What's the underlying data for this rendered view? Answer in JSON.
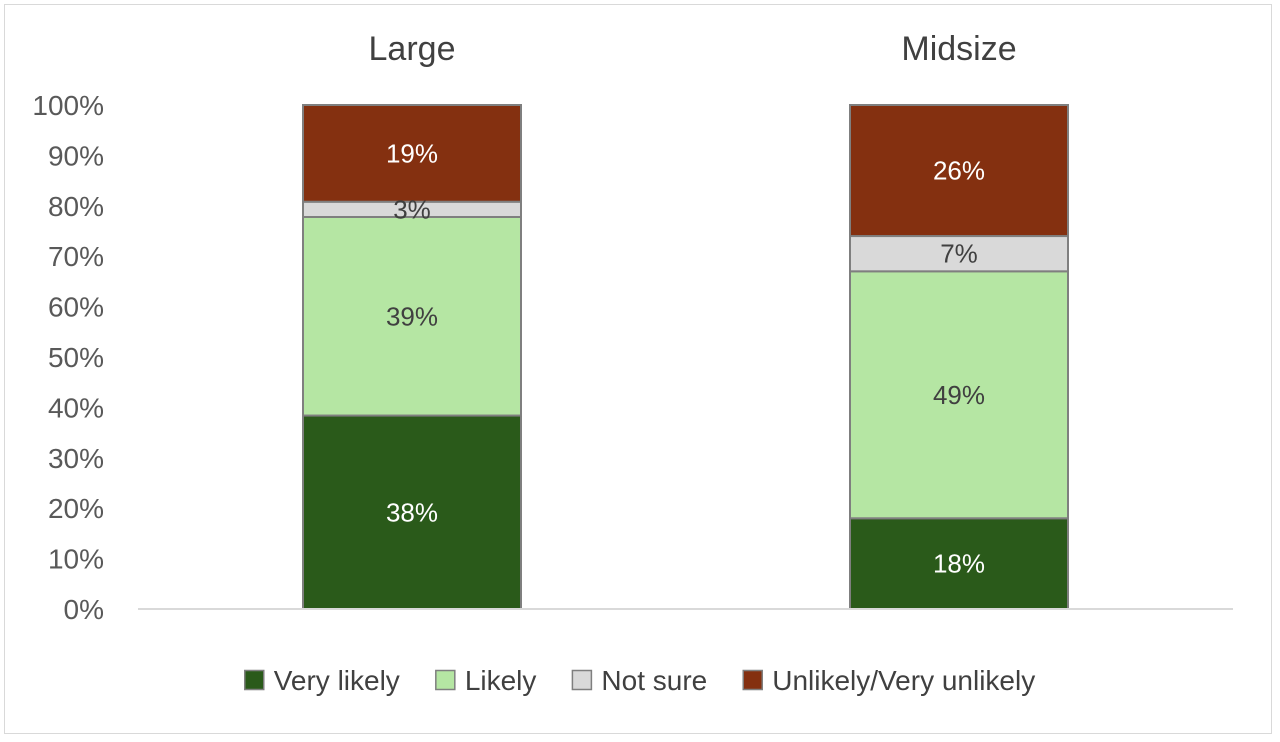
{
  "chart_data": {
    "type": "bar",
    "stacked": true,
    "percent_axis": true,
    "categories": [
      "Large",
      "Midsize"
    ],
    "series": [
      {
        "name": "Very likely",
        "values": [
          38,
          18
        ],
        "color": "#2a5a1a",
        "label_color": "#ffffff"
      },
      {
        "name": "Likely",
        "values": [
          39,
          49
        ],
        "color": "#b5e6a3",
        "label_color": "#404040"
      },
      {
        "name": "Not sure",
        "values": [
          3,
          7
        ],
        "color": "#d9d9d9",
        "label_color": "#404040"
      },
      {
        "name": "Unlikely/Very unlikely",
        "values": [
          19,
          26
        ],
        "color": "#843010",
        "label_color": "#ffffff"
      }
    ],
    "data_labels": [
      [
        "38%",
        "18%"
      ],
      [
        "39%",
        "49%"
      ],
      [
        "3%",
        "7%"
      ],
      [
        "19%",
        "26%"
      ]
    ],
    "yticks": [
      "0%",
      "10%",
      "20%",
      "30%",
      "40%",
      "50%",
      "60%",
      "70%",
      "80%",
      "90%",
      "100%"
    ],
    "ylim": [
      0,
      100
    ],
    "grid": false,
    "legend_position": "bottom",
    "title": "",
    "xlabel": "",
    "ylabel": ""
  }
}
